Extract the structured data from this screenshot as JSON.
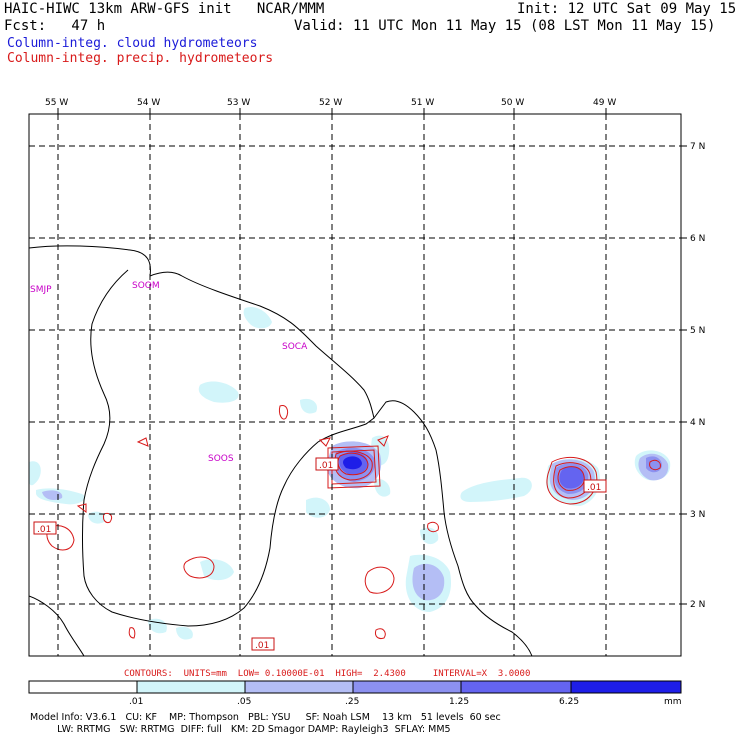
{
  "header": {
    "model_line": "HAIC-HIWC 13km ARW-GFS init   NCAR/MMM",
    "init_line": "Init: 12 UTC Sat 09 May 15",
    "fcst_line": "Fcst:   47 h",
    "valid_line": "Valid: 11 UTC Mon 11 May 15 (08 LST Mon 11 May 15)",
    "field1": "Column-integ. cloud hydrometeors",
    "field2": "Column-integ. precip. hydrometeors"
  },
  "map": {
    "lon_labels": [
      "55 W",
      "54 W",
      "53 W",
      "52 W",
      "51 W",
      "50 W",
      "49 W"
    ],
    "lat_labels": [
      "7 N",
      "6 N",
      "5 N",
      "4 N",
      "3 N",
      "2 N"
    ],
    "stations": [
      "SMJP",
      "SOOM",
      "SOCA",
      "SOOS"
    ],
    "contour_labels": [
      ".01",
      ".01",
      ".01",
      ".01"
    ]
  },
  "contours_line": "CONTOURS:  UNITS=mm  LOW= 0.10000E-01  HIGH=  2.4300     INTERVAL=X  3.0000",
  "colorbar": {
    "ticks": [
      ".01",
      ".05",
      ".25",
      "1.25",
      "6.25"
    ],
    "unit": "mm",
    "colors": [
      "#ffffff",
      "#d2f5fa",
      "#b4bef5",
      "#8c91f0",
      "#6464f0",
      "#1e1ee8"
    ]
  },
  "footer": {
    "line1": "Model Info: V3.6.1   CU: KF    MP: Thompson   PBL: YSU     SF: Noah LSM    13 km   51 levels  60 sec",
    "line2": "         LW: RRTMG   SW: RRTMG  DIFF: full   KM: 2D Smagor DAMP: Rayleigh3  SFLAY: MM5"
  }
}
